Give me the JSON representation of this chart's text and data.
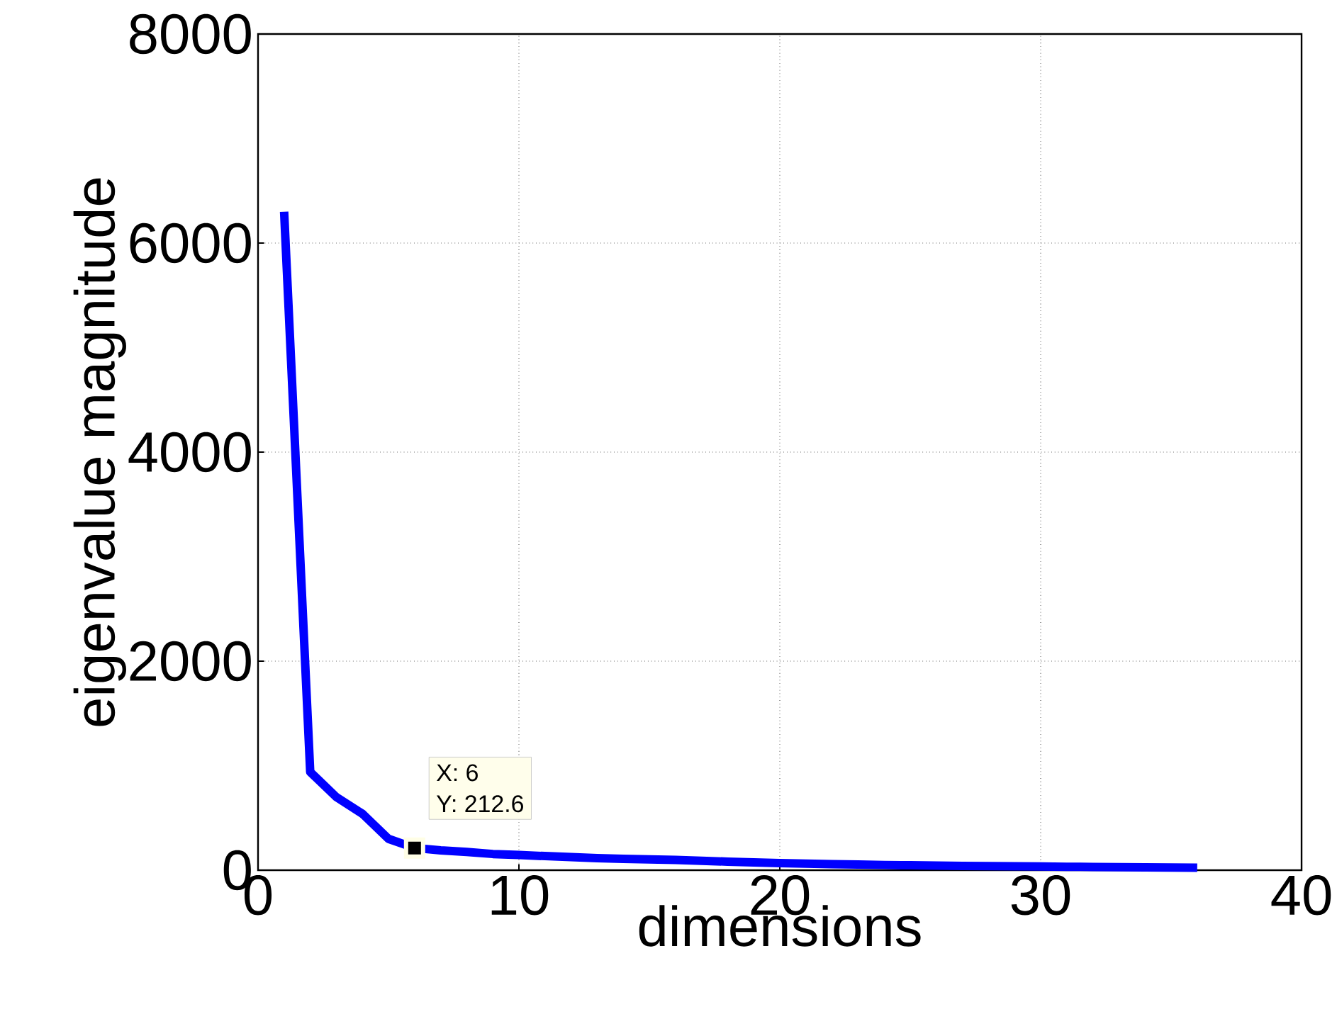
{
  "chart_data": {
    "type": "line",
    "xlabel": "dimensions",
    "ylabel": "eigenvalue magnitude",
    "x": [
      1,
      2,
      3,
      4,
      5,
      6,
      7,
      8,
      9,
      10,
      11,
      12,
      13,
      14,
      15,
      16,
      17,
      18,
      19,
      20,
      21,
      22,
      23,
      24,
      25,
      26,
      27,
      28,
      29,
      30,
      31,
      32,
      33,
      34,
      35,
      36
    ],
    "series": [
      {
        "color": "#0000ff",
        "values": [
          6300,
          940,
          700,
          540,
          300,
          212.6,
          190,
          175,
          155,
          145,
          135,
          125,
          115,
          108,
          104,
          98,
          90,
          82,
          75,
          68,
          62,
          58,
          54,
          50,
          47,
          44,
          41,
          39,
          37,
          35,
          33,
          31,
          29,
          27,
          25,
          23
        ]
      }
    ],
    "xlim": [
      0,
      40
    ],
    "xticks": [
      0,
      10,
      20,
      30,
      40
    ],
    "ylim": [
      0,
      8000
    ],
    "yticks": [
      0,
      2000,
      4000,
      6000,
      8000
    ],
    "grid": true,
    "line_style": "solid",
    "marker": "none",
    "annotations": [
      {
        "text": "X: 6",
        "x": 6,
        "y": 212.6
      },
      {
        "text": "Y: 212.6",
        "x": 6,
        "y": 212.6
      }
    ]
  }
}
